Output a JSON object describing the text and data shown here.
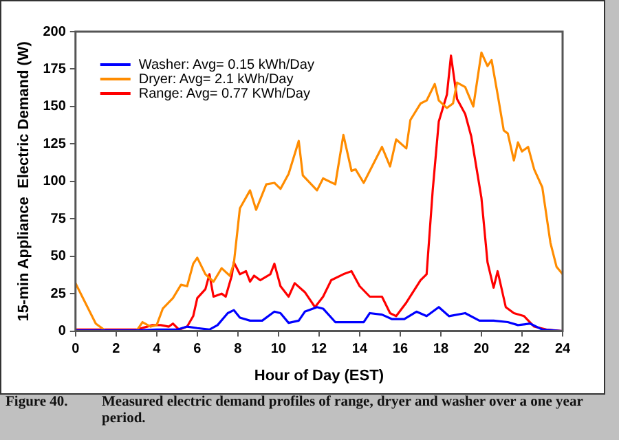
{
  "chart_data": {
    "type": "line",
    "xlabel": "Hour of Day (EST)",
    "ylabel": "15-min Appliance  Electric Demand (W)",
    "xlim": [
      0,
      24
    ],
    "xticks": [
      0,
      2,
      4,
      6,
      8,
      10,
      12,
      14,
      16,
      18,
      20,
      22,
      24
    ],
    "ylim": [
      0,
      200
    ],
    "yticks": [
      0,
      25,
      50,
      75,
      100,
      125,
      150,
      175,
      200
    ],
    "grid": false,
    "legend": "top left",
    "marker": "none",
    "line_style": "solid",
    "annotations": [
      "Figure 40.",
      "Measured electric demand profiles of range, dryer and washer over a one year period."
    ],
    "series": [
      {
        "name": "Washer: Avg= 0.15 kWh/Day",
        "color": "#0000ff",
        "x": [
          0,
          1,
          2,
          3,
          4,
          5,
          5.5,
          6,
          6.6,
          7,
          7.5,
          7.8,
          8.1,
          8.6,
          9.2,
          9.8,
          10.1,
          10.5,
          11,
          11.3,
          11.9,
          12.2,
          12.8,
          13.6,
          14.2,
          14.5,
          15.1,
          15.6,
          16.2,
          16.8,
          17.3,
          17.9,
          18.4,
          19.2,
          19.9,
          20.6,
          21.3,
          21.8,
          22.4,
          23,
          24
        ],
        "values": [
          0.5,
          0.5,
          0.5,
          0.5,
          1,
          1,
          3,
          2,
          1,
          4,
          12,
          14,
          9,
          7,
          7,
          13,
          12,
          5.5,
          7,
          13,
          16,
          15,
          6,
          6,
          6,
          12,
          11,
          8,
          8,
          13,
          10,
          16,
          10,
          12,
          7,
          7,
          6,
          4,
          5,
          1,
          0
        ]
      },
      {
        "name": "Dryer: Avg= 2.1 kWh/Day",
        "color": "#ff8c00",
        "x": [
          0,
          1,
          1.5,
          2,
          3,
          3.3,
          3.7,
          4,
          4.3,
          4.8,
          5.2,
          5.5,
          5.8,
          6,
          6.4,
          6.8,
          7.2,
          7.6,
          7.8,
          8.1,
          8.6,
          8.9,
          9.4,
          9.8,
          10.1,
          10.5,
          11,
          11.2,
          11.9,
          12.2,
          12.8,
          13.2,
          13.6,
          13.8,
          14.2,
          15.1,
          15.5,
          15.8,
          16.3,
          16.5,
          17,
          17.3,
          17.7,
          17.9,
          18.3,
          18.6,
          18.8,
          19.2,
          19.6,
          20,
          20.3,
          20.5,
          20.8,
          21.1,
          21.3,
          21.6,
          21.8,
          22,
          22.3,
          22.6,
          23,
          23.4,
          23.7,
          24
        ],
        "values": [
          32,
          5,
          0,
          0,
          0,
          6,
          3,
          4,
          15,
          22,
          31,
          30,
          45,
          49,
          38,
          33,
          42,
          37,
          45,
          82,
          94,
          81,
          98,
          99,
          95,
          105,
          127,
          104,
          94,
          102,
          98,
          131,
          107,
          108,
          99,
          123,
          110,
          128,
          122,
          141,
          152,
          154,
          165,
          154,
          149,
          152,
          166,
          163,
          150,
          186,
          177,
          181,
          158,
          134,
          132,
          114,
          126,
          120,
          123,
          108,
          96,
          59,
          43,
          38
        ]
      },
      {
        "name": "Range: Avg= 0.77 KWh/Day",
        "color": "#ff0000",
        "x": [
          0,
          1,
          2,
          3,
          3.8,
          4.2,
          4.6,
          4.8,
          5.1,
          5.5,
          5.8,
          6,
          6.4,
          6.6,
          6.8,
          7.2,
          7.4,
          7.7,
          7.8,
          8.1,
          8.4,
          8.6,
          8.8,
          9.1,
          9.6,
          9.8,
          10.1,
          10.5,
          10.8,
          11.3,
          11.8,
          12.2,
          12.6,
          13.2,
          13.6,
          14,
          14.5,
          15.1,
          15.5,
          15.8,
          16.3,
          17,
          17.3,
          17.6,
          17.9,
          18.3,
          18.5,
          18.8,
          19.2,
          19.5,
          20,
          20.3,
          20.6,
          20.8,
          21.2,
          21.6,
          22.1,
          22.6,
          23.2,
          24
        ],
        "values": [
          1,
          1,
          1,
          1,
          4,
          4,
          3,
          5,
          1,
          3,
          10,
          22,
          28,
          38,
          23,
          25,
          23,
          37,
          46,
          38,
          40,
          33,
          37,
          34,
          38,
          45,
          30,
          23,
          32,
          26,
          16,
          23,
          34,
          38,
          40,
          30,
          23,
          23,
          12,
          10,
          19,
          34,
          38,
          94,
          140,
          158,
          184,
          155,
          145,
          130,
          89,
          46,
          29,
          40,
          16,
          12,
          10,
          3,
          1,
          0
        ]
      }
    ]
  }
}
